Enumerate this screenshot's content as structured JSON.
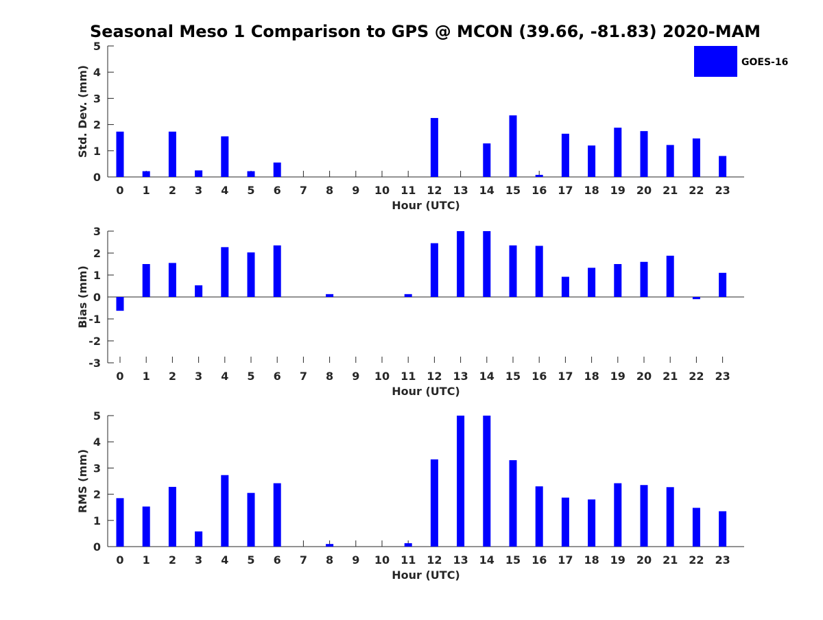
{
  "title": "Seasonal Meso 1 Comparison to GPS @ MCON (39.66, -81.83) 2020-MAM",
  "bar_color": "#0000ff",
  "chart_data": [
    {
      "type": "bar",
      "name": "std-dev",
      "series_name": "GOES-16",
      "categories": [
        "0",
        "1",
        "2",
        "3",
        "4",
        "5",
        "6",
        "7",
        "8",
        "9",
        "10",
        "11",
        "12",
        "13",
        "14",
        "15",
        "16",
        "17",
        "18",
        "19",
        "20",
        "21",
        "22",
        "23"
      ],
      "values": [
        1.73,
        0.22,
        1.73,
        0.25,
        1.55,
        0.22,
        0.55,
        0,
        0,
        0,
        0,
        0,
        2.25,
        0,
        1.28,
        2.35,
        0.08,
        1.65,
        1.2,
        1.88,
        1.75,
        1.22,
        1.47,
        0.8
      ],
      "xlabel": "Hour (UTC)",
      "ylabel": "Std. Dev. (mm)",
      "ylim": [
        0,
        5
      ],
      "yticks": [
        "0",
        "1",
        "2",
        "3",
        "4",
        "5"
      ],
      "grid": false
    },
    {
      "type": "bar",
      "name": "bias",
      "series_name": "GOES-16",
      "categories": [
        "0",
        "1",
        "2",
        "3",
        "4",
        "5",
        "6",
        "7",
        "8",
        "9",
        "10",
        "11",
        "12",
        "13",
        "14",
        "15",
        "16",
        "17",
        "18",
        "19",
        "20",
        "21",
        "22",
        "23"
      ],
      "values": [
        -0.63,
        1.5,
        1.55,
        0.53,
        2.27,
        2.03,
        2.35,
        0,
        0.13,
        0,
        0,
        0.13,
        2.45,
        3.0,
        3.0,
        2.35,
        2.33,
        0.92,
        1.33,
        1.5,
        1.6,
        1.88,
        -0.1,
        1.1
      ],
      "xlabel": "Hour (UTC)",
      "ylabel": "Bias (mm)",
      "ylim": [
        -3,
        3
      ],
      "yticks": [
        "-3",
        "-2",
        "-1",
        "0",
        "1",
        "2",
        "3"
      ],
      "grid": false
    },
    {
      "type": "bar",
      "name": "rms",
      "series_name": "GOES-16",
      "categories": [
        "0",
        "1",
        "2",
        "3",
        "4",
        "5",
        "6",
        "7",
        "8",
        "9",
        "10",
        "11",
        "12",
        "13",
        "14",
        "15",
        "16",
        "17",
        "18",
        "19",
        "20",
        "21",
        "22",
        "23"
      ],
      "values": [
        1.85,
        1.53,
        2.28,
        0.58,
        2.73,
        2.05,
        2.42,
        0,
        0.1,
        0,
        0,
        0.13,
        3.33,
        5.0,
        5.0,
        3.3,
        2.3,
        1.87,
        1.8,
        2.42,
        2.35,
        2.27,
        1.48,
        1.35
      ],
      "xlabel": "Hour (UTC)",
      "ylabel": "RMS (mm)",
      "ylim": [
        0,
        5
      ],
      "yticks": [
        "0",
        "1",
        "2",
        "3",
        "4",
        "5"
      ],
      "grid": false
    }
  ],
  "legend": {
    "label": "GOES-16",
    "placement": "top-right"
  }
}
